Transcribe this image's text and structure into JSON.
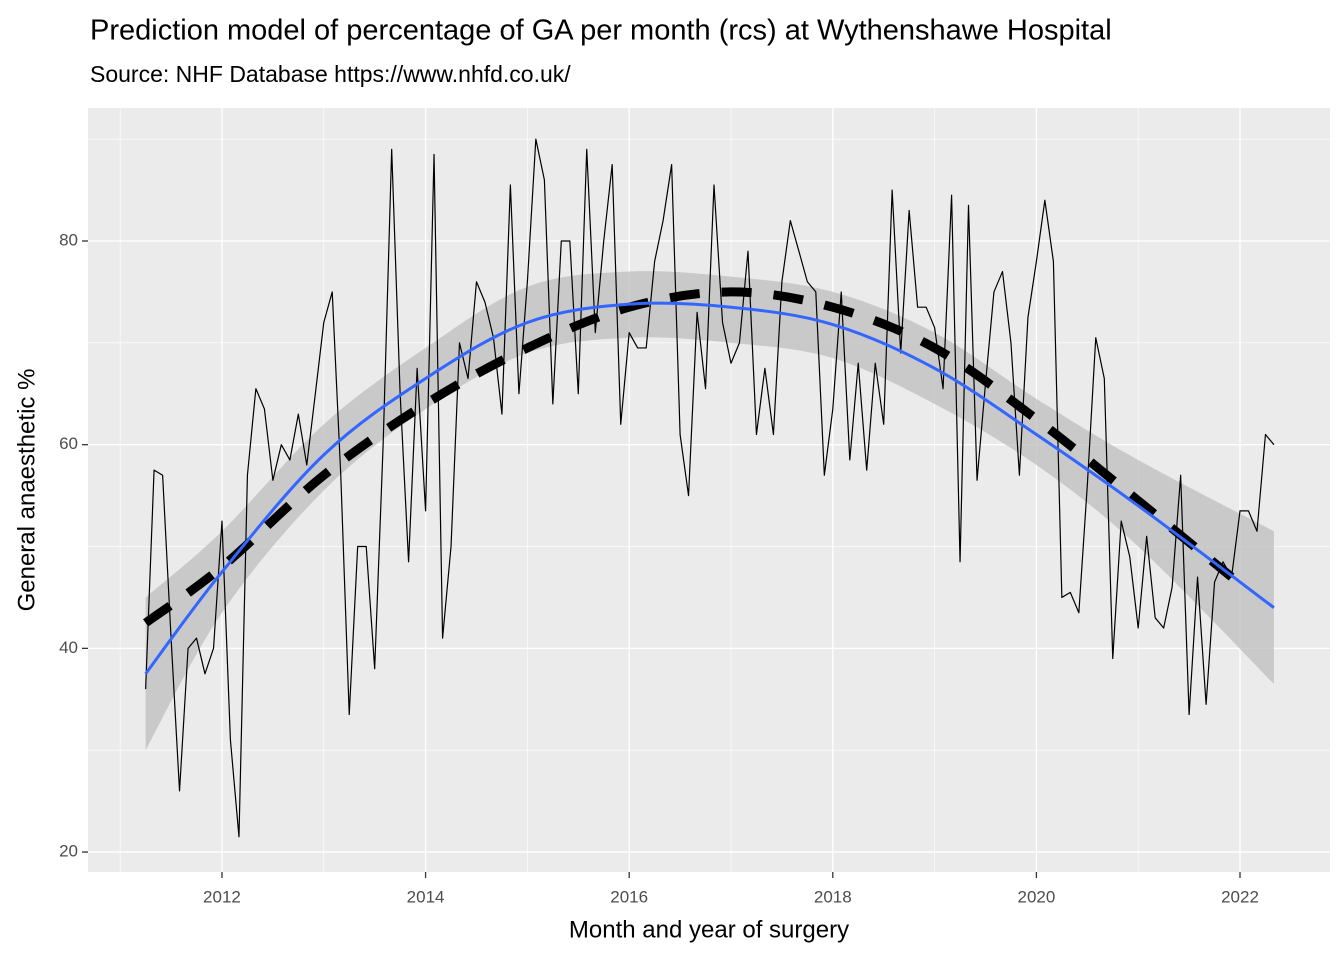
{
  "chart_data": {
    "type": "line",
    "title": "Prediction model of percentage of GA per month (rcs) at Wythenshawe Hospital",
    "subtitle": "Source: NHF Database https://www.nhfd.co.uk/",
    "x_label": "Month and year of surgery",
    "y_label": "General anaesthetic %",
    "xlim": [
      2010.684,
      2022.884
    ],
    "ylim": [
      18.04,
      93.06
    ],
    "xticks": [
      2012,
      2014,
      2016,
      2018,
      2020,
      2022
    ],
    "yticks": [
      20,
      40,
      60,
      80
    ],
    "xminor": [
      2011,
      2013,
      2015,
      2017,
      2019,
      2021
    ],
    "yminor": [
      30,
      50,
      70,
      90
    ],
    "grid": true,
    "background": "#ebebeb",
    "x": [
      2011.25,
      2011.333,
      2011.417,
      2011.5,
      2011.583,
      2011.667,
      2011.75,
      2011.833,
      2011.917,
      2012,
      2012.083,
      2012.167,
      2012.25,
      2012.333,
      2012.417,
      2012.5,
      2012.583,
      2012.667,
      2012.75,
      2012.833,
      2012.917,
      2013,
      2013.083,
      2013.167,
      2013.25,
      2013.333,
      2013.417,
      2013.5,
      2013.583,
      2013.667,
      2013.75,
      2013.833,
      2013.917,
      2014,
      2014.083,
      2014.167,
      2014.25,
      2014.333,
      2014.417,
      2014.5,
      2014.583,
      2014.667,
      2014.75,
      2014.833,
      2014.917,
      2015,
      2015.083,
      2015.167,
      2015.25,
      2015.333,
      2015.417,
      2015.5,
      2015.583,
      2015.667,
      2015.75,
      2015.833,
      2015.917,
      2016,
      2016.083,
      2016.167,
      2016.25,
      2016.333,
      2016.417,
      2016.5,
      2016.583,
      2016.667,
      2016.75,
      2016.833,
      2016.917,
      2017,
      2017.083,
      2017.167,
      2017.25,
      2017.333,
      2017.417,
      2017.5,
      2017.583,
      2017.667,
      2017.75,
      2017.833,
      2017.917,
      2018,
      2018.083,
      2018.167,
      2018.25,
      2018.333,
      2018.417,
      2018.5,
      2018.583,
      2018.667,
      2018.75,
      2018.833,
      2018.917,
      2019,
      2019.083,
      2019.167,
      2019.25,
      2019.333,
      2019.417,
      2019.5,
      2019.583,
      2019.667,
      2019.75,
      2019.833,
      2019.917,
      2020,
      2020.083,
      2020.167,
      2020.25,
      2020.333,
      2020.417,
      2020.5,
      2020.583,
      2020.667,
      2020.75,
      2020.833,
      2020.917,
      2021,
      2021.083,
      2021.167,
      2021.25,
      2021.333,
      2021.417,
      2021.5,
      2021.583,
      2021.667,
      2021.75,
      2021.833,
      2021.917,
      2022,
      2022.083,
      2022.167,
      2022.25,
      2022.333
    ],
    "band": {
      "color": "#bebebe",
      "x": [
        2011.25,
        2012,
        2013,
        2014,
        2015,
        2016,
        2017,
        2018,
        2019,
        2020,
        2021,
        2022.333
      ],
      "upper": [
        45,
        51.5,
        62,
        69.5,
        75.5,
        77,
        76.5,
        75,
        71,
        64.5,
        58.5,
        51.5
      ],
      "lower": [
        30,
        43.5,
        55.5,
        63.5,
        69,
        70.5,
        70,
        68.5,
        64,
        58,
        50,
        36.5
      ]
    },
    "series": [
      {
        "color": "#000000",
        "values": [
          36,
          57.5,
          57,
          41,
          26,
          40,
          41,
          37.5,
          40,
          52.5,
          31,
          21.5,
          57,
          65.5,
          63.5,
          56.5,
          60,
          58.5,
          63,
          58,
          65,
          72,
          75,
          57,
          33.5,
          50,
          50,
          38,
          60,
          89,
          65,
          48.5,
          67.5,
          53.5,
          88.5,
          41,
          50,
          70,
          66.5,
          76,
          74,
          70.5,
          63,
          85.5,
          65,
          76,
          90,
          86,
          64,
          80,
          80,
          65,
          89,
          71,
          80,
          87.5,
          62,
          71,
          69.5,
          69.5,
          78,
          82,
          87.5,
          61,
          55,
          73,
          65.5,
          85.5,
          72,
          68,
          70,
          79,
          61,
          67.5,
          61,
          76,
          82,
          79,
          76,
          75,
          57,
          63.5,
          75,
          58.5,
          68,
          57.5,
          68,
          62,
          85,
          69,
          83,
          73.5,
          73.5,
          71.5,
          65.5,
          84.5,
          48.5,
          83.5,
          56.5,
          66,
          75,
          77,
          70,
          57,
          72.5,
          78,
          84,
          78,
          45,
          45.5,
          43.5,
          56,
          70.5,
          66.5,
          39,
          52.5,
          49,
          42,
          51,
          43,
          42,
          46,
          57,
          33.5,
          47,
          34.5,
          46.5,
          48.5,
          47,
          53.5,
          53.5,
          51.5,
          61,
          60
        ]
      },
      {
        "color": "#000000",
        "dashed": true,
        "x": [
          2011.25,
          2012,
          2013,
          2014,
          2015,
          2016,
          2017,
          2018,
          2019,
          2020,
          2021,
          2021.917
        ],
        "values": [
          42.5,
          48,
          57,
          64,
          69.5,
          73.5,
          75,
          73.5,
          69.5,
          62.5,
          54.5,
          47
        ]
      },
      {
        "color": "#3366ff",
        "x": [
          2011.25,
          2012,
          2013,
          2014,
          2015,
          2016,
          2017,
          2018,
          2019,
          2020,
          2021,
          2022.333
        ],
        "values": [
          37.5,
          47.5,
          59,
          66.5,
          72,
          73.8,
          73.5,
          71.8,
          67.5,
          61,
          54,
          44
        ]
      }
    ]
  }
}
